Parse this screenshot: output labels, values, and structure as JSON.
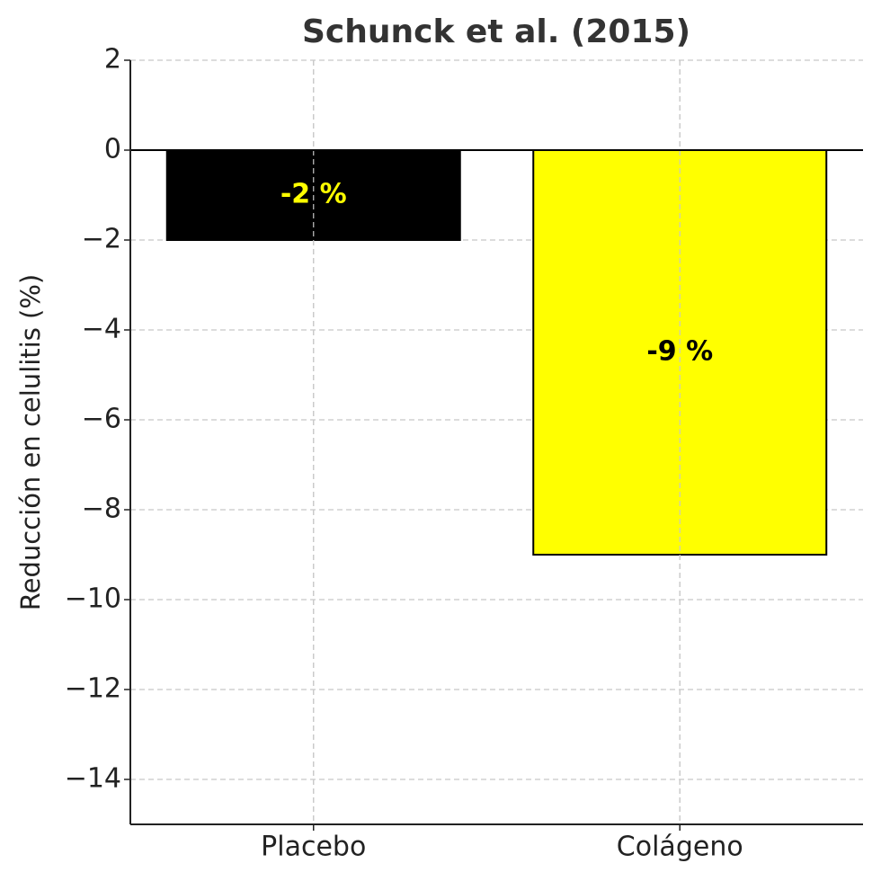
{
  "chart_data": {
    "type": "bar",
    "title": "Schunck et al. (2015)",
    "ylabel": "Reducción en celulitis (%)",
    "categories": [
      "Placebo",
      "Colágeno"
    ],
    "values": [
      -2,
      -9
    ],
    "value_labels": [
      "-2 %",
      "-9 %"
    ],
    "colors": [
      "#000000",
      "#ffff00"
    ],
    "label_colors": [
      "#ffff00",
      "#000000"
    ],
    "edge_color": "#000000",
    "ylim": [
      -15,
      2
    ],
    "yticks": [
      2,
      0,
      {
        "value": -2,
        "label": "−2"
      },
      {
        "value": -4,
        "label": "−4"
      },
      {
        "value": -6,
        "label": "−6"
      },
      {
        "value": -8,
        "label": "−8"
      },
      {
        "value": -10,
        "label": "−10"
      },
      {
        "value": -12,
        "label": "−12"
      },
      {
        "value": -14,
        "label": "−14"
      }
    ],
    "grid": true
  }
}
